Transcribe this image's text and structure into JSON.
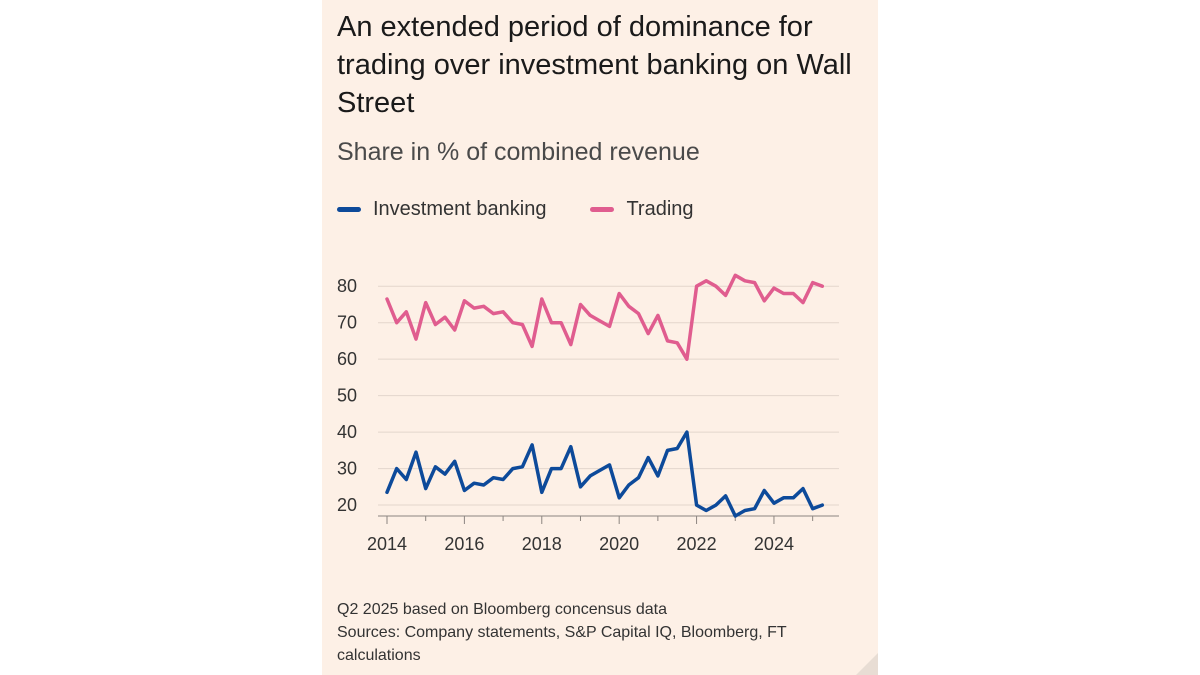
{
  "title": "An extended period of dominance for trading over investment banking on Wall Street",
  "subtitle": "Share in % of combined revenue",
  "notes": [
    "Q2 2025 based on Bloomberg concensus data",
    "Sources: Company statements, S&P Capital IQ, Bloomberg, FT calculations"
  ],
  "chart_data": {
    "type": "line",
    "xlim": [
      2014,
      2025.5
    ],
    "ylim": [
      17,
      85
    ],
    "yticks": [
      20,
      30,
      40,
      50,
      60,
      70,
      80
    ],
    "xticks": [
      2014,
      2016,
      2018,
      2020,
      2022,
      2024
    ],
    "grid": "horizontal",
    "legend": "top-left",
    "series": [
      {
        "name": "Investment banking",
        "color": "#0d4a9a",
        "x": [
          2014.0,
          2014.25,
          2014.5,
          2014.75,
          2015.0,
          2015.25,
          2015.5,
          2015.75,
          2016.0,
          2016.25,
          2016.5,
          2016.75,
          2017.0,
          2017.25,
          2017.5,
          2017.75,
          2018.0,
          2018.25,
          2018.5,
          2018.75,
          2019.0,
          2019.25,
          2019.5,
          2019.75,
          2020.0,
          2020.25,
          2020.5,
          2020.75,
          2021.0,
          2021.25,
          2021.5,
          2021.75,
          2022.0,
          2022.25,
          2022.5,
          2022.75,
          2023.0,
          2023.25,
          2023.5,
          2023.75,
          2024.0,
          2024.25,
          2024.5,
          2024.75,
          2025.0,
          2025.25
        ],
        "y": [
          23.5,
          30,
          27,
          34.5,
          24.5,
          30.5,
          28.5,
          32,
          24,
          26,
          25.5,
          27.5,
          27,
          30,
          30.5,
          36.5,
          23.5,
          30,
          30,
          36,
          25,
          28,
          29.5,
          31,
          22,
          25.5,
          27.5,
          33,
          28,
          35,
          35.5,
          40,
          20,
          18.5,
          20,
          22.5,
          17,
          18.5,
          19,
          24,
          20.5,
          22,
          22,
          24.5,
          19,
          20
        ]
      },
      {
        "name": "Trading",
        "color": "#e05d8f",
        "x": [
          2014.0,
          2014.25,
          2014.5,
          2014.75,
          2015.0,
          2015.25,
          2015.5,
          2015.75,
          2016.0,
          2016.25,
          2016.5,
          2016.75,
          2017.0,
          2017.25,
          2017.5,
          2017.75,
          2018.0,
          2018.25,
          2018.5,
          2018.75,
          2019.0,
          2019.25,
          2019.5,
          2019.75,
          2020.0,
          2020.25,
          2020.5,
          2020.75,
          2021.0,
          2021.25,
          2021.5,
          2021.75,
          2022.0,
          2022.25,
          2022.5,
          2022.75,
          2023.0,
          2023.25,
          2023.5,
          2023.75,
          2024.0,
          2024.25,
          2024.5,
          2024.75,
          2025.0,
          2025.25
        ],
        "y": [
          76.5,
          70,
          73,
          65.5,
          75.5,
          69.5,
          71.5,
          68,
          76,
          74,
          74.5,
          72.5,
          73,
          70,
          69.5,
          63.5,
          76.5,
          70,
          70,
          64,
          75,
          72,
          70.5,
          69,
          78,
          74.5,
          72.5,
          67,
          72,
          65,
          64.5,
          60,
          80,
          81.5,
          80,
          77.5,
          83,
          81.5,
          81,
          76,
          79.5,
          78,
          78,
          75.5,
          81,
          80
        ]
      }
    ]
  }
}
